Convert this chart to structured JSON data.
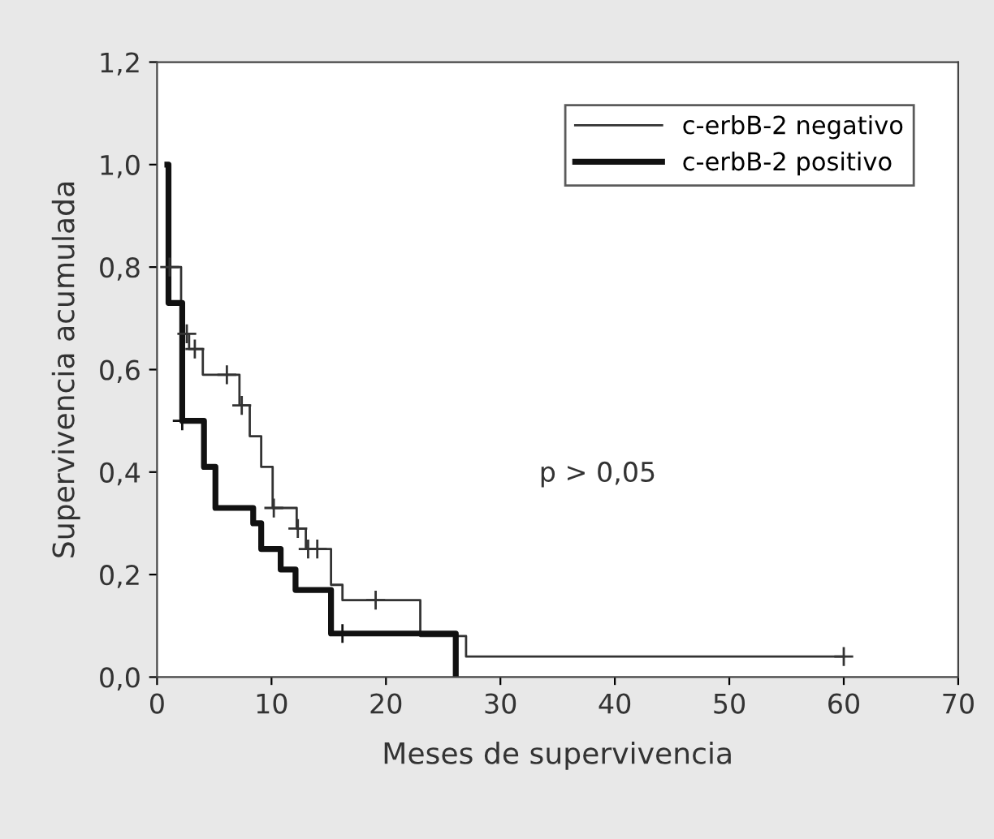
{
  "chart_data": {
    "type": "step",
    "xlabel": "Meses de supervivencia",
    "ylabel": "Supervivencia acumulada",
    "xlim": [
      0,
      70
    ],
    "xticks": [
      0,
      10,
      20,
      30,
      40,
      50,
      60,
      70
    ],
    "ylim": [
      0,
      1.2
    ],
    "yticks": [
      {
        "value": 0,
        "label": "0,0"
      },
      {
        "value": 0.2,
        "label": "0,2"
      },
      {
        "value": 0.4,
        "label": "0,4"
      },
      {
        "value": 0.6,
        "label": "0,6"
      },
      {
        "value": 0.8,
        "label": "0,8"
      },
      {
        "value": 1.0,
        "label": "1,0"
      },
      {
        "value": 1.2,
        "label": "1,2"
      }
    ],
    "grid": false,
    "legend": "top right",
    "annotations": [
      "p > 0,05"
    ],
    "series": [
      {
        "name": "c-erbB-2 negativo",
        "color": "#333333",
        "x": [
          0.9,
          1.0,
          2.1,
          2.8,
          4.0,
          7.2,
          8.1,
          9.1,
          10.1,
          12.2,
          13.0,
          15.2,
          16.2,
          23.0,
          27.0,
          60.0
        ],
        "values": [
          1.0,
          0.8,
          0.67,
          0.64,
          0.59,
          0.53,
          0.47,
          0.41,
          0.33,
          0.29,
          0.25,
          0.18,
          0.15,
          0.08,
          0.04,
          0.04
        ]
      },
      {
        "name": "c-erbB-2 positivo",
        "color": "#111111",
        "x": [
          0.9,
          1.0,
          2.2,
          4.1,
          5.1,
          8.4,
          9.1,
          10.8,
          12.1,
          15.2,
          26.1
        ],
        "values": [
          1.0,
          0.73,
          0.5,
          0.41,
          0.33,
          0.3,
          0.25,
          0.21,
          0.17,
          0.085,
          0.0
        ]
      },
      {
        "type": "scatter",
        "marker": "cross",
        "color": "#333333",
        "x": [
          1.1,
          2.6,
          3.3,
          6.1,
          7.4,
          10.2,
          12.3,
          13.2,
          14.0,
          19.1,
          60.0
        ],
        "values": [
          0.8,
          0.67,
          0.64,
          0.59,
          0.53,
          0.33,
          0.29,
          0.25,
          0.25,
          0.15,
          0.04
        ]
      },
      {
        "type": "scatter",
        "marker": "cross",
        "color": "#111111",
        "x": [
          2.2,
          16.2
        ],
        "values": [
          0.5,
          0.085
        ]
      }
    ]
  }
}
